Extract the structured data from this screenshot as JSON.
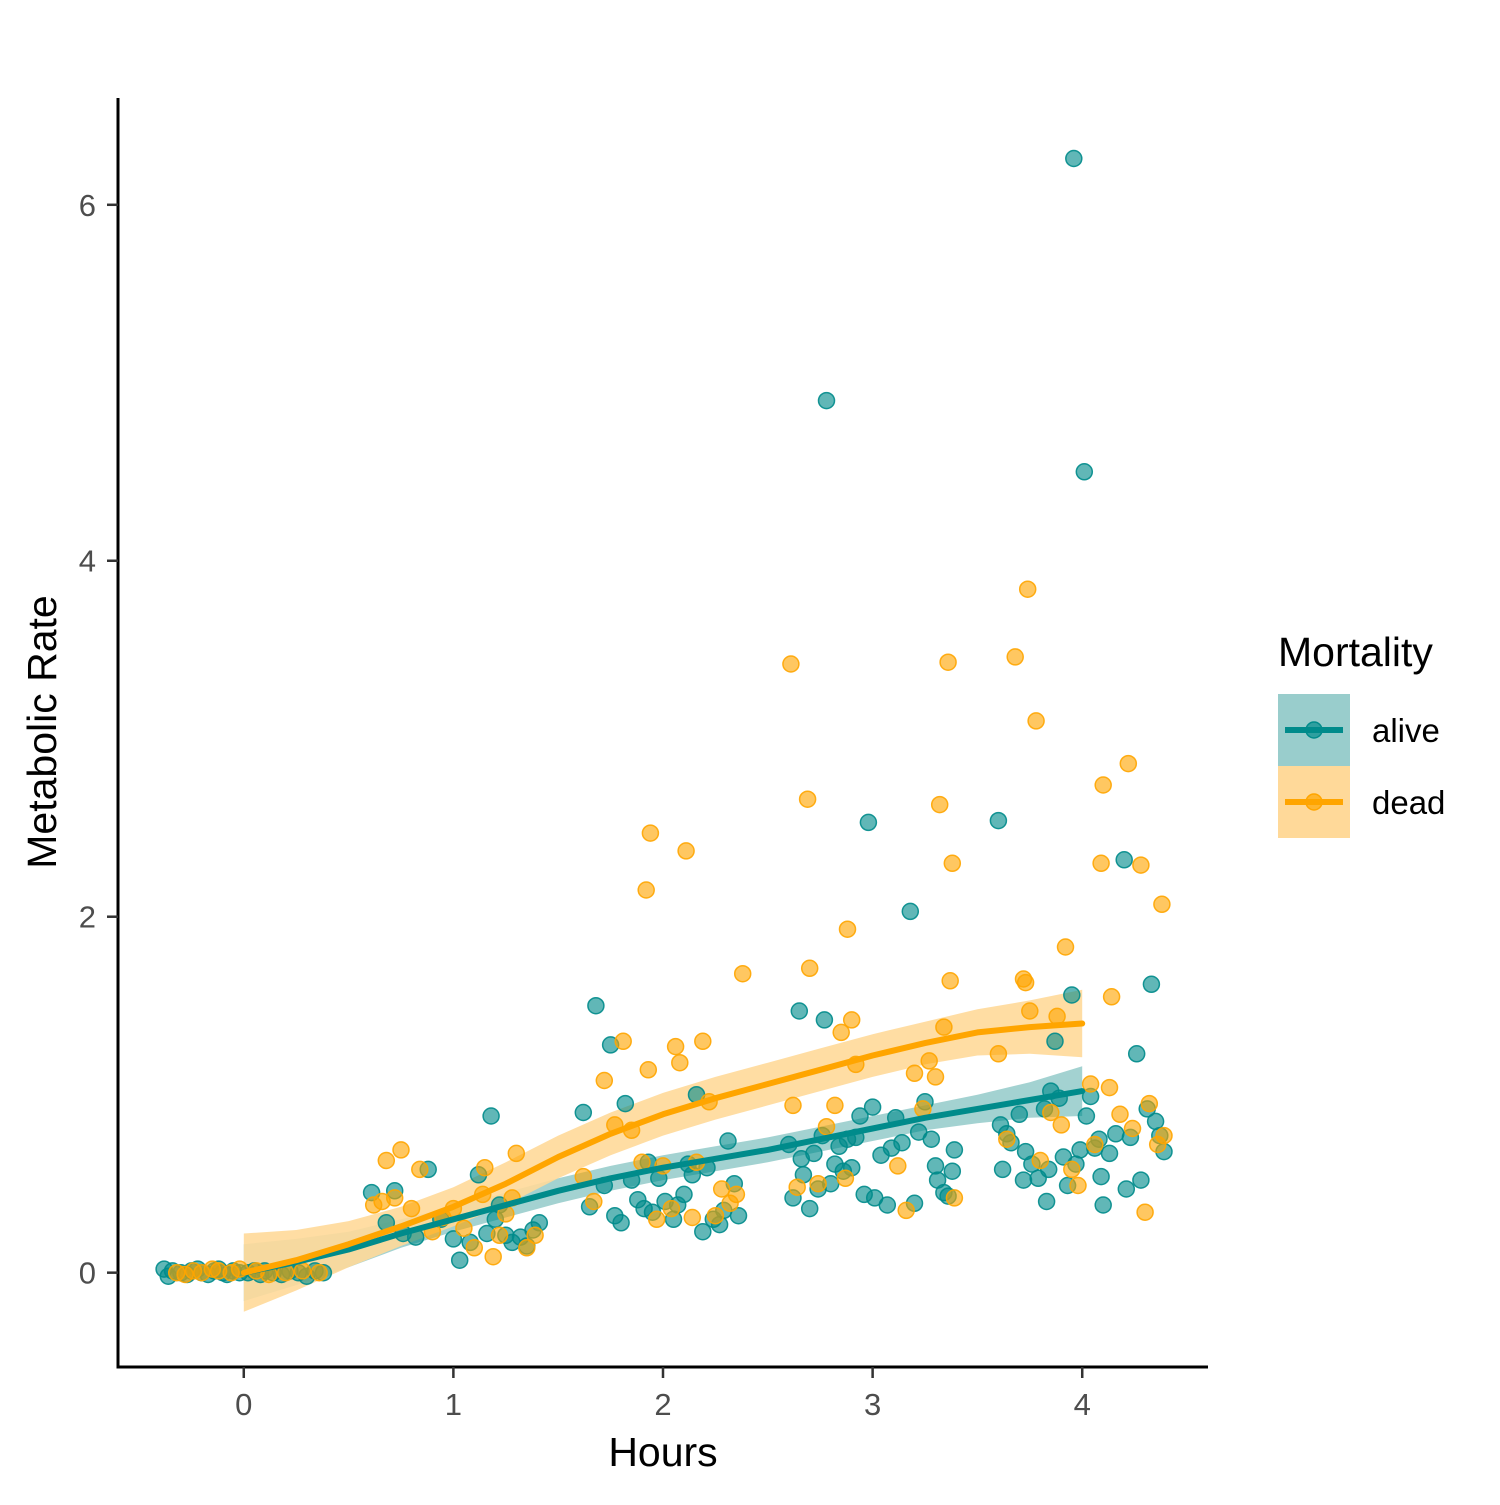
{
  "chart_data": {
    "type": "scatter",
    "xlabel": "Hours",
    "ylabel": "Metabolic Rate",
    "xlim": [
      -0.6,
      4.6
    ],
    "ylim": [
      -0.53,
      6.6
    ],
    "x_ticks": [
      0,
      1,
      2,
      3,
      4
    ],
    "y_ticks": [
      0,
      2,
      4,
      6
    ],
    "grid": false,
    "legend": {
      "title": "Mortality",
      "placement": "right"
    },
    "series": [
      {
        "name": "alive",
        "color": "#008B8B",
        "ribbon_color": "#99CDCC",
        "points": [
          [
            -0.38,
            0.02
          ],
          [
            -0.36,
            -0.02
          ],
          [
            -0.34,
            0.01
          ],
          [
            -0.3,
            0.0
          ],
          [
            -0.27,
            -0.01
          ],
          [
            -0.25,
            0.01
          ],
          [
            -0.22,
            0.02
          ],
          [
            -0.2,
            0.0
          ],
          [
            -0.17,
            -0.01
          ],
          [
            -0.14,
            0.01
          ],
          [
            -0.12,
            0.02
          ],
          [
            -0.1,
            0.0
          ],
          [
            -0.08,
            -0.01
          ],
          [
            -0.05,
            0.01
          ],
          [
            -0.02,
            0.0
          ],
          [
            0.02,
            0.0
          ],
          [
            0.05,
            0.01
          ],
          [
            0.08,
            -0.01
          ],
          [
            0.1,
            0.01
          ],
          [
            0.14,
            0.0
          ],
          [
            0.18,
            -0.01
          ],
          [
            0.22,
            0.01
          ],
          [
            0.26,
            0.0
          ],
          [
            0.3,
            -0.02
          ],
          [
            0.34,
            0.01
          ],
          [
            0.38,
            0.0
          ],
          [
            0.61,
            0.45
          ],
          [
            0.68,
            0.28
          ],
          [
            0.72,
            0.46
          ],
          [
            0.76,
            0.22
          ],
          [
            0.82,
            0.2
          ],
          [
            0.88,
            0.58
          ],
          [
            0.94,
            0.3
          ],
          [
            1.0,
            0.19
          ],
          [
            1.03,
            0.07
          ],
          [
            1.08,
            0.17
          ],
          [
            1.12,
            0.55
          ],
          [
            1.16,
            0.22
          ],
          [
            1.18,
            0.88
          ],
          [
            1.2,
            0.3
          ],
          [
            1.22,
            0.38
          ],
          [
            1.25,
            0.21
          ],
          [
            1.28,
            0.17
          ],
          [
            1.32,
            0.2
          ],
          [
            1.35,
            0.15
          ],
          [
            1.38,
            0.24
          ],
          [
            1.41,
            0.28
          ],
          [
            1.62,
            0.9
          ],
          [
            1.65,
            0.37
          ],
          [
            1.68,
            1.5
          ],
          [
            1.72,
            0.49
          ],
          [
            1.75,
            1.28
          ],
          [
            1.77,
            0.32
          ],
          [
            1.8,
            0.28
          ],
          [
            1.82,
            0.95
          ],
          [
            1.85,
            0.52
          ],
          [
            1.88,
            0.41
          ],
          [
            1.91,
            0.36
          ],
          [
            1.93,
            0.62
          ],
          [
            1.95,
            0.34
          ],
          [
            1.98,
            0.53
          ],
          [
            2.01,
            0.4
          ],
          [
            2.05,
            0.3
          ],
          [
            2.07,
            0.38
          ],
          [
            2.1,
            0.44
          ],
          [
            2.12,
            0.61
          ],
          [
            2.14,
            0.55
          ],
          [
            2.16,
            1.0
          ],
          [
            2.19,
            0.23
          ],
          [
            2.21,
            0.59
          ],
          [
            2.24,
            0.3
          ],
          [
            2.27,
            0.27
          ],
          [
            2.29,
            0.35
          ],
          [
            2.31,
            0.74
          ],
          [
            2.34,
            0.5
          ],
          [
            2.36,
            0.32
          ],
          [
            2.6,
            0.72
          ],
          [
            2.62,
            0.42
          ],
          [
            2.65,
            1.47
          ],
          [
            2.66,
            0.64
          ],
          [
            2.67,
            0.55
          ],
          [
            2.7,
            0.36
          ],
          [
            2.72,
            0.67
          ],
          [
            2.74,
            0.47
          ],
          [
            2.76,
            0.77
          ],
          [
            2.77,
            1.42
          ],
          [
            2.78,
            4.9
          ],
          [
            2.8,
            0.5
          ],
          [
            2.82,
            0.61
          ],
          [
            2.84,
            0.71
          ],
          [
            2.86,
            0.57
          ],
          [
            2.88,
            0.75
          ],
          [
            2.9,
            0.59
          ],
          [
            2.92,
            0.76
          ],
          [
            2.94,
            0.88
          ],
          [
            2.96,
            0.44
          ],
          [
            2.98,
            2.53
          ],
          [
            3.0,
            0.93
          ],
          [
            3.01,
            0.42
          ],
          [
            3.04,
            0.66
          ],
          [
            3.07,
            0.38
          ],
          [
            3.09,
            0.7
          ],
          [
            3.11,
            0.87
          ],
          [
            3.14,
            0.73
          ],
          [
            3.18,
            2.03
          ],
          [
            3.2,
            0.39
          ],
          [
            3.22,
            0.79
          ],
          [
            3.25,
            0.96
          ],
          [
            3.28,
            0.75
          ],
          [
            3.3,
            0.6
          ],
          [
            3.31,
            0.52
          ],
          [
            3.34,
            0.45
          ],
          [
            3.36,
            0.43
          ],
          [
            3.38,
            0.57
          ],
          [
            3.39,
            0.69
          ],
          [
            3.6,
            2.54
          ],
          [
            3.61,
            0.83
          ],
          [
            3.62,
            0.58
          ],
          [
            3.64,
            0.78
          ],
          [
            3.66,
            0.73
          ],
          [
            3.7,
            0.89
          ],
          [
            3.72,
            0.52
          ],
          [
            3.73,
            0.68
          ],
          [
            3.76,
            0.61
          ],
          [
            3.79,
            0.53
          ],
          [
            3.82,
            0.92
          ],
          [
            3.83,
            0.4
          ],
          [
            3.84,
            0.58
          ],
          [
            3.85,
            1.02
          ],
          [
            3.87,
            1.3
          ],
          [
            3.89,
            0.98
          ],
          [
            3.91,
            0.65
          ],
          [
            3.93,
            0.49
          ],
          [
            3.95,
            1.56
          ],
          [
            3.96,
            6.26
          ],
          [
            3.97,
            0.61
          ],
          [
            3.99,
            0.69
          ],
          [
            4.01,
            4.5
          ],
          [
            4.02,
            0.88
          ],
          [
            4.04,
            0.99
          ],
          [
            4.06,
            0.7
          ],
          [
            4.08,
            0.75
          ],
          [
            4.09,
            0.54
          ],
          [
            4.1,
            0.38
          ],
          [
            4.13,
            0.67
          ],
          [
            4.16,
            0.78
          ],
          [
            4.2,
            2.32
          ],
          [
            4.21,
            0.47
          ],
          [
            4.23,
            0.76
          ],
          [
            4.26,
            1.23
          ],
          [
            4.28,
            0.52
          ],
          [
            4.31,
            0.92
          ],
          [
            4.33,
            1.62
          ],
          [
            4.35,
            0.85
          ],
          [
            4.37,
            0.77
          ],
          [
            4.39,
            0.68
          ]
        ],
        "fit": [
          [
            0,
            0.0
          ],
          [
            0.25,
            0.06
          ],
          [
            0.5,
            0.13
          ],
          [
            0.75,
            0.22
          ],
          [
            1.0,
            0.3
          ],
          [
            1.25,
            0.38
          ],
          [
            1.5,
            0.46
          ],
          [
            1.75,
            0.53
          ],
          [
            2.0,
            0.59
          ],
          [
            2.25,
            0.64
          ],
          [
            2.5,
            0.69
          ],
          [
            2.75,
            0.75
          ],
          [
            3.0,
            0.81
          ],
          [
            3.25,
            0.87
          ],
          [
            3.5,
            0.92
          ],
          [
            3.75,
            0.97
          ],
          [
            4.0,
            1.02
          ]
        ],
        "ribbon_half_width": [
          0.16,
          0.13,
          0.1,
          0.08,
          0.07,
          0.07,
          0.07,
          0.07,
          0.07,
          0.07,
          0.07,
          0.07,
          0.07,
          0.07,
          0.08,
          0.1,
          0.14
        ]
      },
      {
        "name": "dead",
        "color": "#FFA500",
        "ribbon_color": "#FFD999",
        "points": [
          [
            -0.32,
            0.0
          ],
          [
            -0.28,
            -0.01
          ],
          [
            -0.24,
            0.01
          ],
          [
            -0.2,
            0.0
          ],
          [
            -0.15,
            0.02
          ],
          [
            -0.12,
            0.01
          ],
          [
            -0.06,
            0.0
          ],
          [
            -0.02,
            0.02
          ],
          [
            0.06,
            0.01
          ],
          [
            0.12,
            -0.01
          ],
          [
            0.2,
            0.0
          ],
          [
            0.28,
            0.01
          ],
          [
            0.36,
            0.0
          ],
          [
            0.62,
            0.38
          ],
          [
            0.66,
            0.4
          ],
          [
            0.68,
            0.63
          ],
          [
            0.72,
            0.42
          ],
          [
            0.75,
            0.69
          ],
          [
            0.8,
            0.36
          ],
          [
            0.84,
            0.58
          ],
          [
            0.9,
            0.23
          ],
          [
            0.95,
            0.31
          ],
          [
            1.0,
            0.36
          ],
          [
            1.05,
            0.25
          ],
          [
            1.1,
            0.14
          ],
          [
            1.14,
            0.44
          ],
          [
            1.15,
            0.59
          ],
          [
            1.19,
            0.09
          ],
          [
            1.22,
            0.21
          ],
          [
            1.25,
            0.33
          ],
          [
            1.28,
            0.42
          ],
          [
            1.3,
            0.67
          ],
          [
            1.35,
            0.14
          ],
          [
            1.39,
            0.21
          ],
          [
            1.62,
            0.54
          ],
          [
            1.67,
            0.4
          ],
          [
            1.72,
            1.08
          ],
          [
            1.77,
            0.83
          ],
          [
            1.81,
            1.3
          ],
          [
            1.85,
            0.8
          ],
          [
            1.9,
            0.62
          ],
          [
            1.92,
            2.15
          ],
          [
            1.93,
            1.14
          ],
          [
            1.94,
            2.47
          ],
          [
            1.97,
            0.3
          ],
          [
            2.0,
            0.6
          ],
          [
            2.04,
            0.36
          ],
          [
            2.06,
            1.27
          ],
          [
            2.08,
            1.18
          ],
          [
            2.11,
            2.37
          ],
          [
            2.14,
            0.31
          ],
          [
            2.16,
            0.62
          ],
          [
            2.19,
            1.3
          ],
          [
            2.22,
            0.96
          ],
          [
            2.25,
            0.32
          ],
          [
            2.28,
            0.47
          ],
          [
            2.32,
            0.39
          ],
          [
            2.35,
            0.44
          ],
          [
            2.38,
            1.68
          ],
          [
            2.61,
            3.42
          ],
          [
            2.62,
            0.94
          ],
          [
            2.64,
            0.48
          ],
          [
            2.69,
            2.66
          ],
          [
            2.7,
            1.71
          ],
          [
            2.74,
            0.5
          ],
          [
            2.78,
            0.82
          ],
          [
            2.82,
            0.94
          ],
          [
            2.85,
            1.35
          ],
          [
            2.87,
            0.53
          ],
          [
            2.88,
            1.93
          ],
          [
            2.9,
            1.42
          ],
          [
            2.92,
            1.17
          ],
          [
            3.12,
            0.6
          ],
          [
            3.16,
            0.35
          ],
          [
            3.2,
            1.12
          ],
          [
            3.24,
            0.92
          ],
          [
            3.27,
            1.19
          ],
          [
            3.3,
            1.1
          ],
          [
            3.32,
            2.63
          ],
          [
            3.34,
            1.38
          ],
          [
            3.36,
            3.43
          ],
          [
            3.37,
            1.64
          ],
          [
            3.38,
            2.3
          ],
          [
            3.39,
            0.42
          ],
          [
            3.6,
            1.23
          ],
          [
            3.64,
            0.75
          ],
          [
            3.68,
            3.46
          ],
          [
            3.72,
            1.65
          ],
          [
            3.73,
            1.63
          ],
          [
            3.74,
            3.84
          ],
          [
            3.75,
            1.47
          ],
          [
            3.78,
            3.1
          ],
          [
            3.8,
            0.63
          ],
          [
            3.85,
            0.9
          ],
          [
            3.88,
            1.44
          ],
          [
            3.9,
            0.83
          ],
          [
            3.92,
            1.83
          ],
          [
            3.95,
            0.58
          ],
          [
            3.98,
            0.49
          ],
          [
            4.04,
            1.06
          ],
          [
            4.06,
            0.72
          ],
          [
            4.09,
            2.3
          ],
          [
            4.1,
            2.74
          ],
          [
            4.13,
            1.04
          ],
          [
            4.14,
            1.55
          ],
          [
            4.18,
            0.89
          ],
          [
            4.22,
            2.86
          ],
          [
            4.24,
            0.81
          ],
          [
            4.28,
            2.29
          ],
          [
            4.3,
            0.34
          ],
          [
            4.32,
            0.95
          ],
          [
            4.36,
            0.72
          ],
          [
            4.38,
            2.07
          ],
          [
            4.39,
            0.77
          ]
        ],
        "fit": [
          [
            0,
            0.0
          ],
          [
            0.25,
            0.07
          ],
          [
            0.5,
            0.16
          ],
          [
            0.75,
            0.26
          ],
          [
            1.0,
            0.37
          ],
          [
            1.25,
            0.5
          ],
          [
            1.5,
            0.65
          ],
          [
            1.75,
            0.78
          ],
          [
            2.0,
            0.89
          ],
          [
            2.25,
            0.98
          ],
          [
            2.5,
            1.06
          ],
          [
            2.75,
            1.14
          ],
          [
            3.0,
            1.22
          ],
          [
            3.25,
            1.29
          ],
          [
            3.5,
            1.35
          ],
          [
            3.75,
            1.38
          ],
          [
            4.0,
            1.4
          ]
        ],
        "ribbon_half_width": [
          0.22,
          0.17,
          0.13,
          0.11,
          0.11,
          0.12,
          0.12,
          0.12,
          0.12,
          0.12,
          0.12,
          0.12,
          0.12,
          0.12,
          0.13,
          0.15,
          0.19
        ]
      }
    ]
  }
}
